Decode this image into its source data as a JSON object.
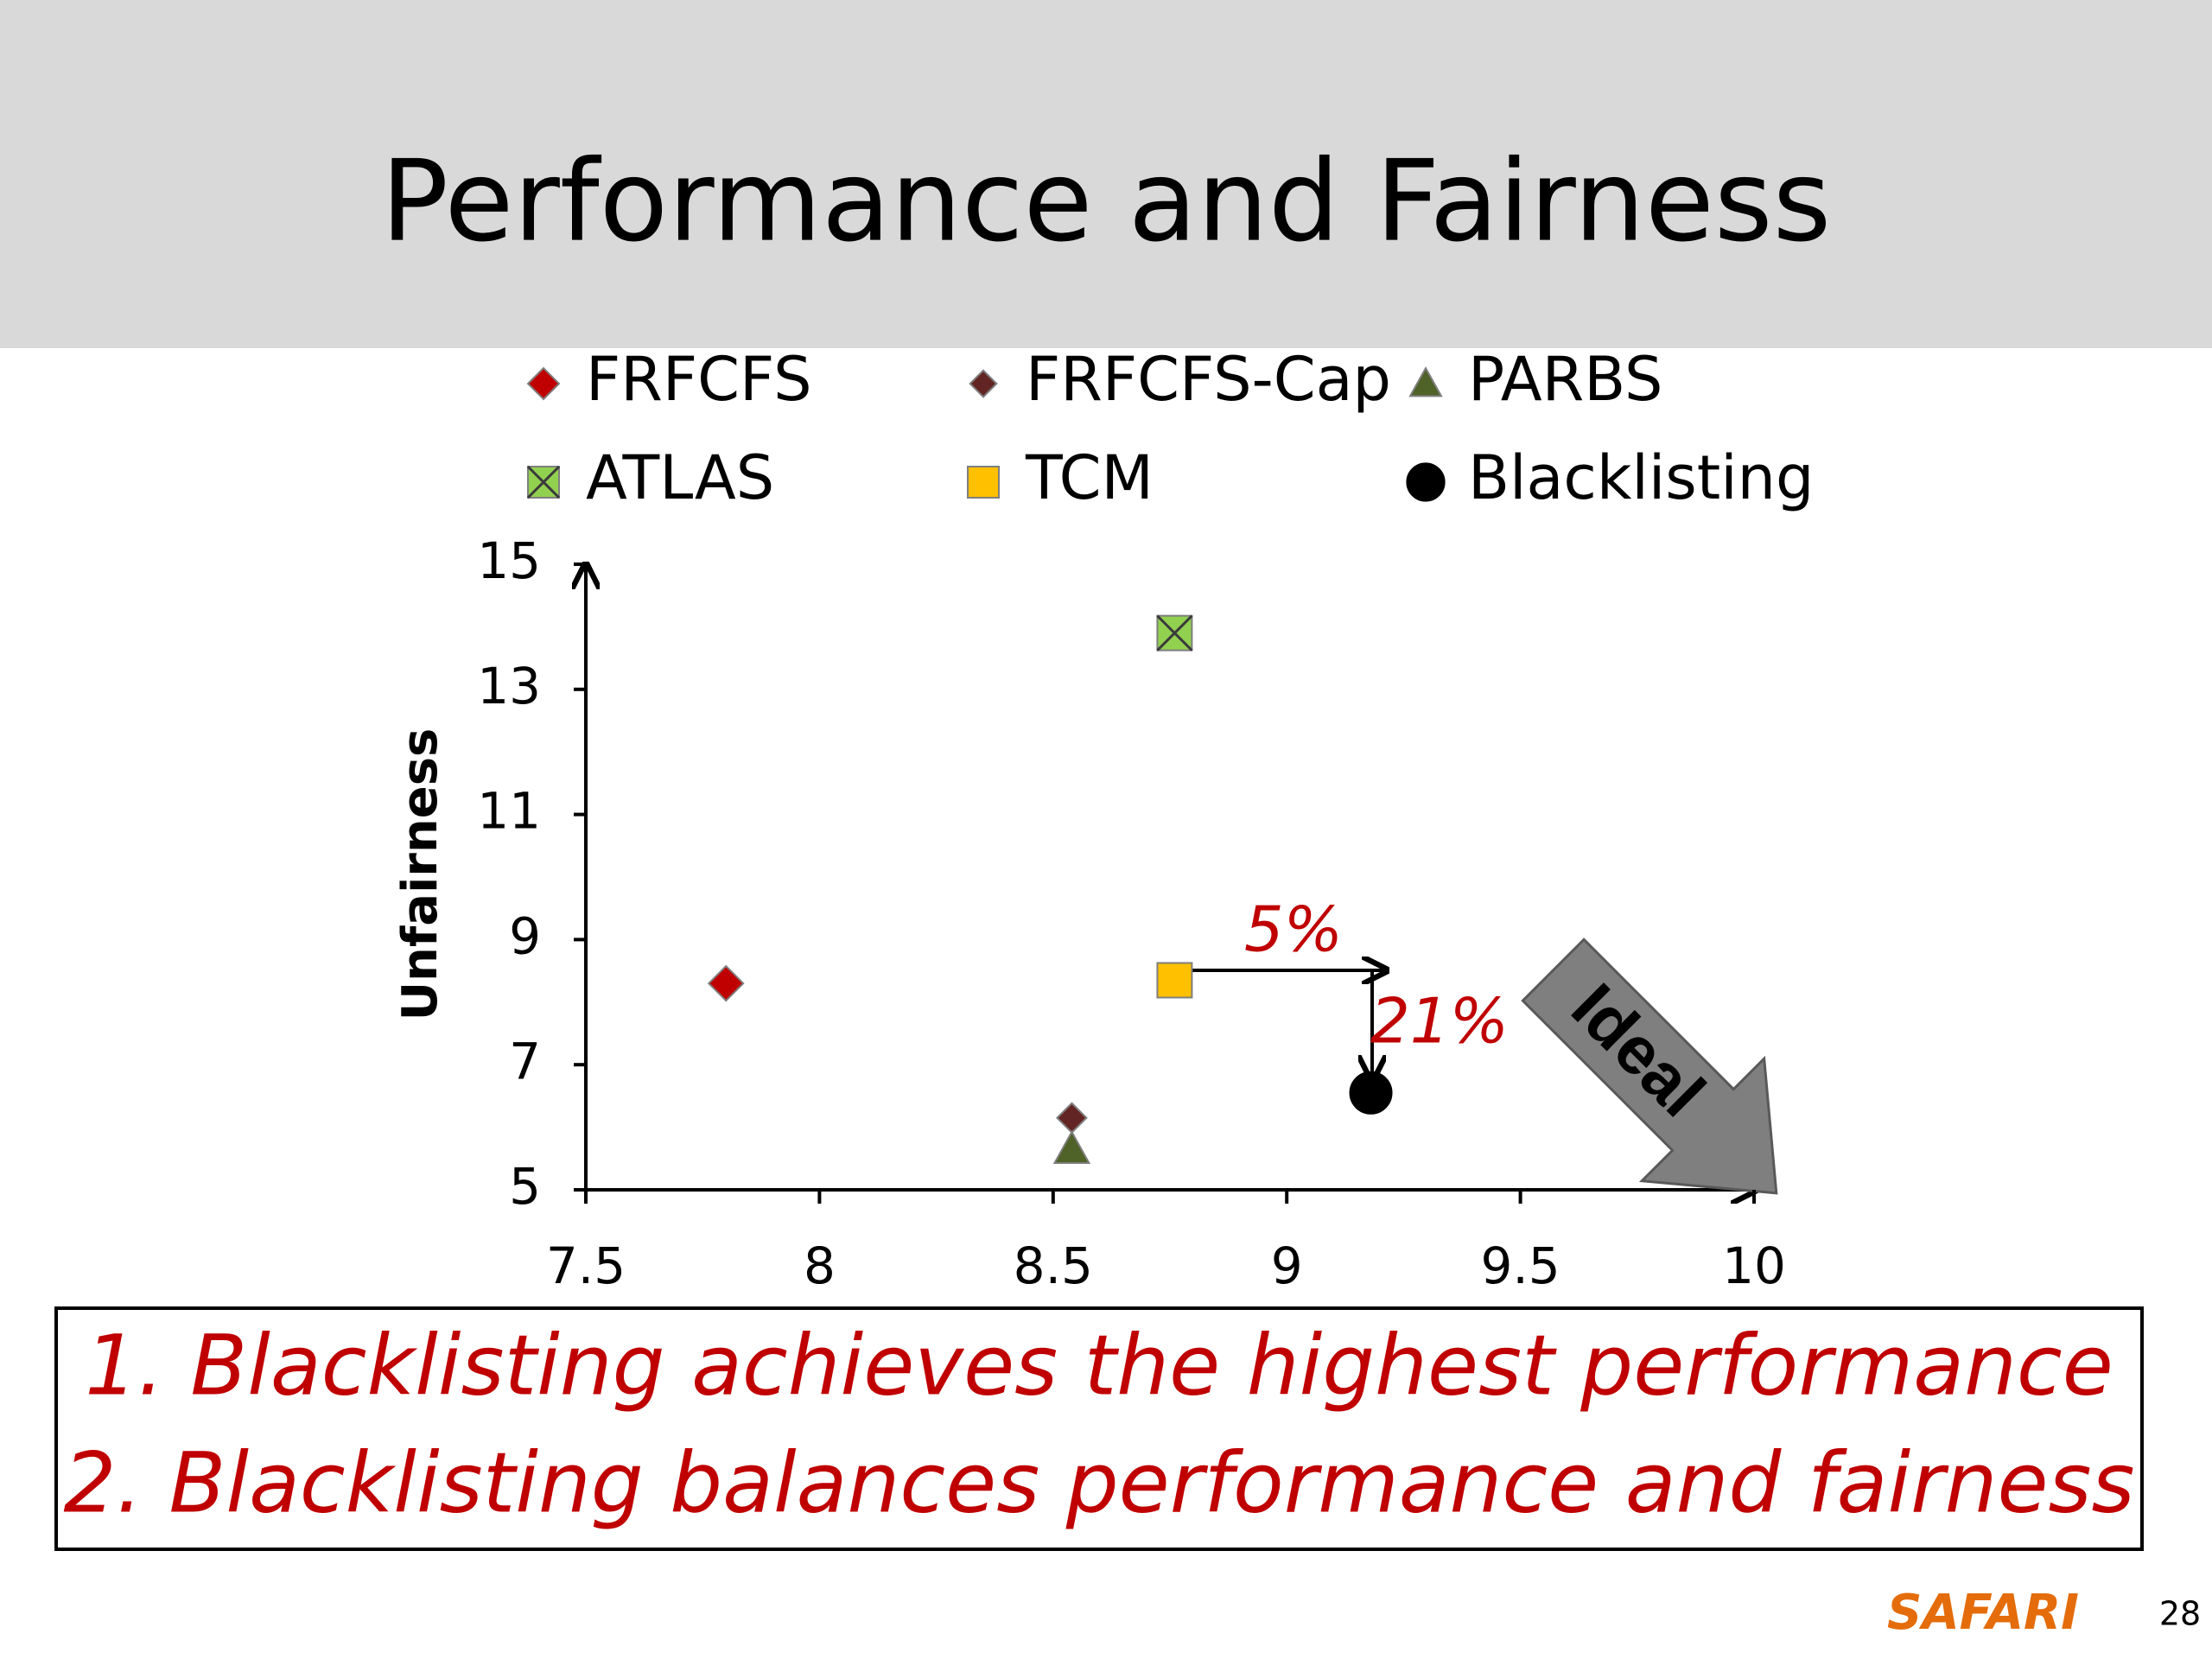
{
  "slide": {
    "title": "Performance and Fairness",
    "conclusions": [
      "1. Blacklisting achieves the highest performance",
      "2. Blacklisting balances performance and fairness"
    ],
    "footer": "SAFARI",
    "page_number": "28"
  },
  "chart_data": {
    "type": "scatter",
    "y_label": "Unfairness",
    "series": [
      {
        "name": "FRFCFS",
        "color": "#c00000",
        "marker": "diamond",
        "x": [
          7.8
        ],
        "values": [
          8.3
        ]
      },
      {
        "name": "FRFCFS-Cap",
        "color": "#632523",
        "marker": "diamond-small",
        "x": [
          8.54
        ],
        "values": [
          6.15
        ]
      },
      {
        "name": "PARBS",
        "color": "#4f6228",
        "marker": "triangle",
        "x": [
          8.54
        ],
        "values": [
          5.65
        ]
      },
      {
        "name": "ATLAS",
        "color": "#92d050",
        "marker": "square-x",
        "x": [
          8.76
        ],
        "values": [
          13.9
        ]
      },
      {
        "name": "TCM",
        "color": "#ffc000",
        "marker": "square",
        "x": [
          8.76
        ],
        "values": [
          8.35
        ]
      },
      {
        "name": "Blacklisting",
        "color": "#000000",
        "marker": "circle",
        "x": [
          9.18
        ],
        "values": [
          6.55
        ]
      }
    ],
    "xlim": [
      7.5,
      10
    ],
    "xticks": [
      7.5,
      8,
      8.5,
      9,
      9.5,
      10
    ],
    "ylim": [
      5,
      15
    ],
    "yticks": [
      5,
      7,
      9,
      11,
      13,
      15
    ],
    "annotations": [
      "5%",
      "21%",
      "Ideal"
    ]
  }
}
